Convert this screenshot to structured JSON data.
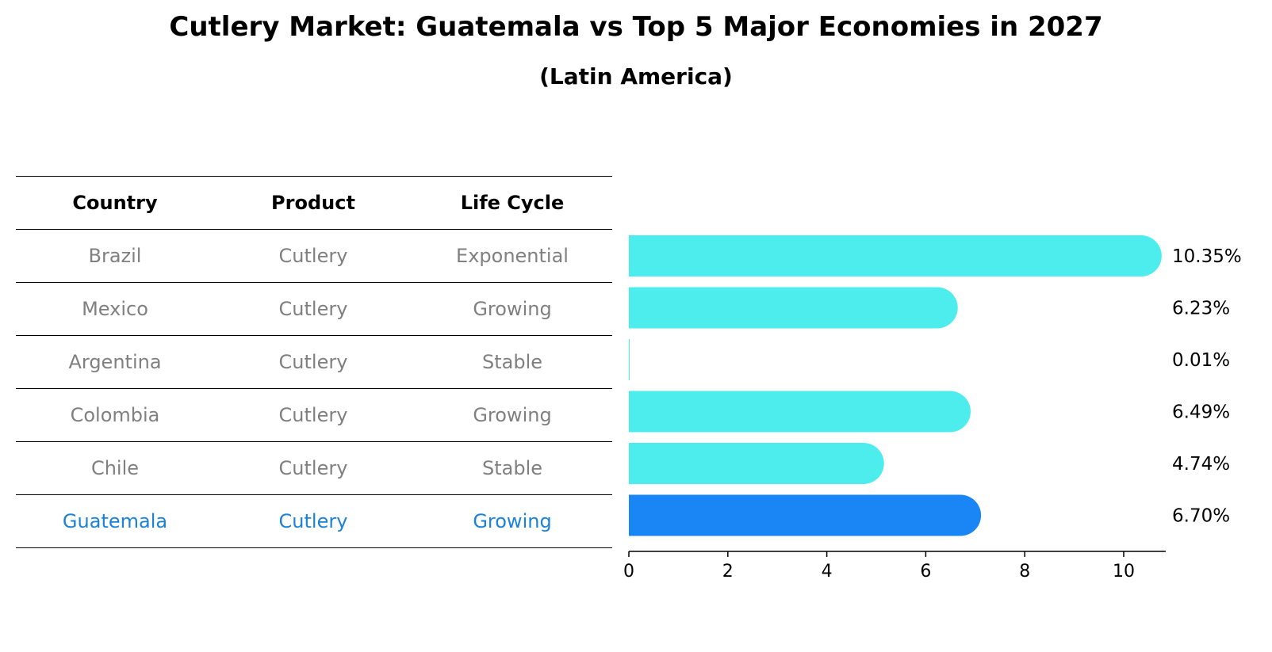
{
  "title": "Cutlery Market: Guatemala vs Top 5 Major Economies in 2027",
  "subtitle": "(Latin America)",
  "table": {
    "headers": [
      "Country",
      "Product",
      "Life Cycle"
    ],
    "rows": [
      {
        "country": "Brazil",
        "product": "Cutlery",
        "life_cycle": "Exponential"
      },
      {
        "country": "Mexico",
        "product": "Cutlery",
        "life_cycle": "Growing"
      },
      {
        "country": "Argentina",
        "product": "Cutlery",
        "life_cycle": "Stable"
      },
      {
        "country": "Colombia",
        "product": "Cutlery",
        "life_cycle": "Growing"
      },
      {
        "country": "Chile",
        "product": "Cutlery",
        "life_cycle": "Stable"
      },
      {
        "country": "Guatemala",
        "product": "Cutlery",
        "life_cycle": "Growing"
      }
    ]
  },
  "colors": {
    "bar": "#4deded",
    "highlight_bar": "#1a86f5",
    "highlight_text": "#1a82d8",
    "table_text": "#808080"
  },
  "chart_data": {
    "type": "bar",
    "orientation": "horizontal",
    "categories": [
      "Brazil",
      "Mexico",
      "Argentina",
      "Colombia",
      "Chile",
      "Guatemala"
    ],
    "values": [
      10.35,
      6.23,
      0.01,
      6.49,
      4.74,
      6.7
    ],
    "value_labels": [
      "10.35%",
      "6.23%",
      "0.01%",
      "6.49%",
      "4.74%",
      "6.70%"
    ],
    "highlight": "Guatemala",
    "xlim": [
      0,
      10.9
    ],
    "xticks": [
      0,
      2,
      4,
      6,
      8,
      10
    ],
    "xlabel": "",
    "ylabel": "",
    "grid": false
  }
}
